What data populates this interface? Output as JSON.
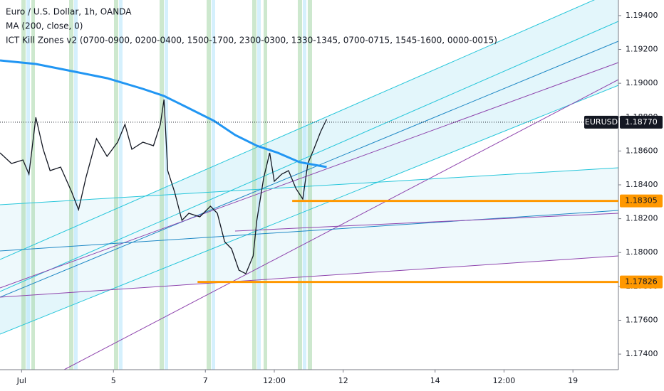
{
  "chart_data": {
    "type": "line",
    "title": "Euro / U.S. Dollar, 1h, OANDA",
    "indicators": [
      "ICT Kill Zones v2 (0700-0900, 0200-0400, 1500-1700, 2300-0300, 1330-1345, 0700-0715, 1545-1600, 0000-0015)"
    ],
    "xlim": [
      -0.47,
      12.99
    ],
    "ylim": [
      1.17308,
      1.19492
    ],
    "xticks": [
      {
        "value": 0,
        "label": "Jul"
      },
      {
        "value": 2,
        "label": "5"
      },
      {
        "value": 4,
        "label": "7"
      },
      {
        "value": 5.5,
        "label": "12:00"
      },
      {
        "value": 7,
        "label": "12"
      },
      {
        "value": 9,
        "label": "14"
      },
      {
        "value": 10.5,
        "label": "12:00"
      },
      {
        "value": 12,
        "label": "19"
      }
    ],
    "yticks": [
      {
        "value": 1.174,
        "label": "1.17400"
      },
      {
        "value": 1.176,
        "label": "1.17600"
      },
      {
        "value": 1.178,
        "label": "1.17800"
      },
      {
        "value": 1.18,
        "label": "1.18000"
      },
      {
        "value": 1.182,
        "label": "1.18200"
      },
      {
        "value": 1.184,
        "label": "1.18400"
      },
      {
        "value": 1.186,
        "label": "1.18600"
      },
      {
        "value": 1.188,
        "label": "1.18800"
      },
      {
        "value": 1.19,
        "label": "1.19000"
      },
      {
        "value": 1.192,
        "label": "1.19200"
      },
      {
        "value": 1.194,
        "label": "1.19400"
      }
    ],
    "series": [
      {
        "color": "#131722",
        "x": [
          -0.47,
          -0.22,
          0.03,
          0.16,
          0.31,
          0.47,
          0.62,
          0.85,
          1.09,
          1.24,
          1.4,
          1.63,
          1.86,
          2.09,
          2.25,
          2.4,
          2.64,
          2.87,
          3.02,
          3.1,
          3.18,
          3.33,
          3.49,
          3.64,
          3.88,
          4.11,
          4.26,
          4.42,
          4.57,
          4.73,
          4.88,
          5.04,
          5.12,
          5.27,
          5.4,
          5.5,
          5.66,
          5.81,
          5.97,
          6.12,
          6.23,
          6.36,
          6.51,
          6.64
        ],
        "values": [
          1.18589,
          1.18526,
          1.18547,
          1.18463,
          1.18799,
          1.1861,
          1.18484,
          1.18505,
          1.18358,
          1.18253,
          1.18442,
          1.18673,
          1.18568,
          1.18652,
          1.18757,
          1.1861,
          1.18652,
          1.18631,
          1.18757,
          1.18904,
          1.18484,
          1.18358,
          1.1819,
          1.18232,
          1.18211,
          1.18274,
          1.18232,
          1.18064,
          1.18022,
          1.17896,
          1.17875,
          1.1798,
          1.1819,
          1.18442,
          1.18589,
          1.18421,
          1.18463,
          1.18484,
          1.18379,
          1.18316,
          1.18526,
          1.1861,
          1.18715,
          1.18787
        ]
      },
      {
        "name": "MA (200, close, 0)",
        "color": "#2196f3",
        "x": [
          -0.47,
          0.31,
          1.09,
          1.86,
          2.64,
          3.1,
          3.57,
          4.19,
          4.65,
          5.12,
          5.58,
          6.05,
          6.64
        ],
        "values": [
          1.19135,
          1.19114,
          1.19072,
          1.1903,
          1.18967,
          1.18925,
          1.18862,
          1.18778,
          1.18694,
          1.18631,
          1.18589,
          1.18534,
          1.18505
        ]
      }
    ],
    "levels": [
      {
        "value": 1.18305,
        "x_start": 5.89,
        "color": "#ff9800"
      },
      {
        "value": 1.17826,
        "x_start": 3.83,
        "color": "#ff9800"
      }
    ],
    "last_price": {
      "symbol": "EURUSD",
      "value": 1.1877,
      "label": "1.18770"
    }
  }
}
